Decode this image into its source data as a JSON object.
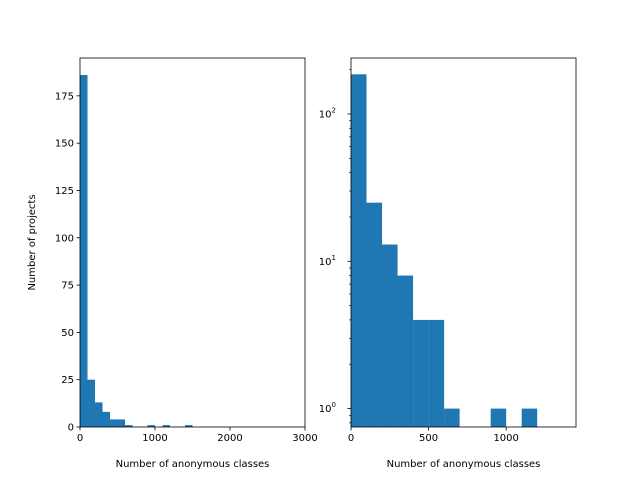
{
  "chart_data": [
    {
      "type": "bar",
      "subtype": "histogram",
      "xlabel": "Number of anonymous classes",
      "ylabel": "Number of projects",
      "xlim": [
        0,
        3000
      ],
      "ylim": [
        0,
        195
      ],
      "yscale": "linear",
      "xticks": [
        0,
        1000,
        2000,
        3000
      ],
      "xtick_labels": [
        "0",
        "1000",
        "2000",
        "3000"
      ],
      "yticks": [
        0,
        25,
        50,
        75,
        100,
        125,
        150,
        175
      ],
      "ytick_labels": [
        "0",
        "25",
        "50",
        "75",
        "100",
        "125",
        "150",
        "175"
      ],
      "bar_color": "#1f77b4",
      "bin_width": 100,
      "bins": [
        {
          "x0": 0,
          "x1": 100,
          "count": 186
        },
        {
          "x0": 100,
          "x1": 200,
          "count": 25
        },
        {
          "x0": 200,
          "x1": 300,
          "count": 13
        },
        {
          "x0": 300,
          "x1": 400,
          "count": 8
        },
        {
          "x0": 400,
          "x1": 500,
          "count": 4
        },
        {
          "x0": 500,
          "x1": 600,
          "count": 4
        },
        {
          "x0": 600,
          "x1": 700,
          "count": 1
        },
        {
          "x0": 900,
          "x1": 1000,
          "count": 1
        },
        {
          "x0": 1100,
          "x1": 1200,
          "count": 1
        },
        {
          "x0": 1400,
          "x1": 1500,
          "count": 1
        }
      ],
      "grid": false
    },
    {
      "type": "bar",
      "subtype": "histogram",
      "xlabel": "Number of anonymous classes",
      "ylabel": "",
      "xlim": [
        0,
        1450
      ],
      "ylim": [
        0.75,
        240
      ],
      "yscale": "log",
      "xticks": [
        0,
        500,
        1000
      ],
      "xtick_labels": [
        "0",
        "500",
        "1000"
      ],
      "yticks": [
        1,
        10,
        100
      ],
      "ytick_labels": [
        "10^0",
        "10^1",
        "10^2"
      ],
      "bar_color": "#1f77b4",
      "bin_width": 100,
      "bins": [
        {
          "x0": 0,
          "x1": 100,
          "count": 186
        },
        {
          "x0": 100,
          "x1": 200,
          "count": 25
        },
        {
          "x0": 200,
          "x1": 300,
          "count": 13
        },
        {
          "x0": 300,
          "x1": 400,
          "count": 8
        },
        {
          "x0": 400,
          "x1": 500,
          "count": 4
        },
        {
          "x0": 500,
          "x1": 600,
          "count": 4
        },
        {
          "x0": 600,
          "x1": 700,
          "count": 1
        },
        {
          "x0": 900,
          "x1": 1000,
          "count": 1
        },
        {
          "x0": 1100,
          "x1": 1200,
          "count": 1
        }
      ],
      "grid": false
    }
  ]
}
